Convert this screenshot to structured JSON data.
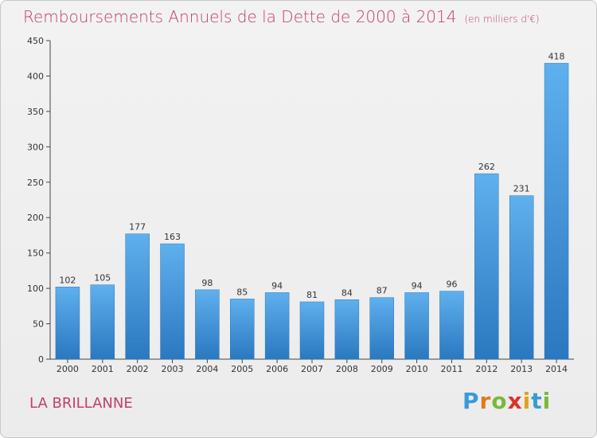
{
  "chart_data": {
    "type": "bar",
    "title": "Remboursements Annuels de la Dette de 2000 à 2014",
    "subtitle": "(en milliers d'€)",
    "categories": [
      "2000",
      "2001",
      "2002",
      "2003",
      "2004",
      "2005",
      "2006",
      "2007",
      "2008",
      "2009",
      "2010",
      "2011",
      "2012",
      "2013",
      "2014"
    ],
    "values": [
      102,
      105,
      177,
      163,
      98,
      85,
      94,
      81,
      84,
      87,
      94,
      96,
      262,
      231,
      418
    ],
    "xlabel": "",
    "ylabel": "",
    "ylim": [
      0,
      450
    ],
    "yticks": [
      0,
      50,
      100,
      150,
      200,
      250,
      300,
      350,
      400,
      450
    ],
    "grid": false,
    "bar_color": "#3a93d8"
  },
  "commune": "LA BRILLANNE",
  "logo": {
    "letters": [
      "P",
      "r",
      "o",
      "x",
      "i",
      "t",
      "i"
    ],
    "colors": [
      "#3a9ad9",
      "#e07b1a",
      "#7bb83a",
      "#d9342a",
      "#e0a21a",
      "#3a9ad9",
      "#7bb83a"
    ]
  }
}
